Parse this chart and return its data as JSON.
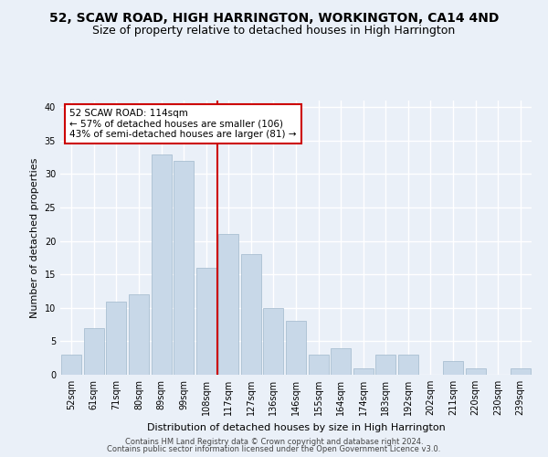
{
  "title1": "52, SCAW ROAD, HIGH HARRINGTON, WORKINGTON, CA14 4ND",
  "title2": "Size of property relative to detached houses in High Harrington",
  "xlabel": "Distribution of detached houses by size in High Harrington",
  "ylabel": "Number of detached properties",
  "footnote1": "Contains HM Land Registry data © Crown copyright and database right 2024.",
  "footnote2": "Contains public sector information licensed under the Open Government Licence v3.0.",
  "bin_labels": [
    "52sqm",
    "61sqm",
    "71sqm",
    "80sqm",
    "89sqm",
    "99sqm",
    "108sqm",
    "117sqm",
    "127sqm",
    "136sqm",
    "146sqm",
    "155sqm",
    "164sqm",
    "174sqm",
    "183sqm",
    "192sqm",
    "202sqm",
    "211sqm",
    "220sqm",
    "230sqm",
    "239sqm"
  ],
  "bin_values": [
    3,
    7,
    11,
    12,
    33,
    32,
    16,
    21,
    18,
    10,
    8,
    3,
    4,
    1,
    3,
    3,
    0,
    2,
    1,
    0,
    1
  ],
  "bar_color": "#c8d8e8",
  "bar_edge_color": "#a0b8cc",
  "vline_color": "#cc0000",
  "annotation_line1": "52 SCAW ROAD: 114sqm",
  "annotation_line2": "← 57% of detached houses are smaller (106)",
  "annotation_line3": "43% of semi-detached houses are larger (81) →",
  "annotation_box_color": "#ffffff",
  "annotation_box_edge": "#cc0000",
  "ylim": [
    0,
    41
  ],
  "yticks": [
    0,
    5,
    10,
    15,
    20,
    25,
    30,
    35,
    40
  ],
  "bg_color": "#eaf0f8",
  "grid_color": "#ffffff",
  "title1_fontsize": 10,
  "title2_fontsize": 9,
  "xlabel_fontsize": 8,
  "ylabel_fontsize": 8,
  "tick_fontsize": 7,
  "annot_fontsize": 7.5,
  "footnote_fontsize": 6
}
